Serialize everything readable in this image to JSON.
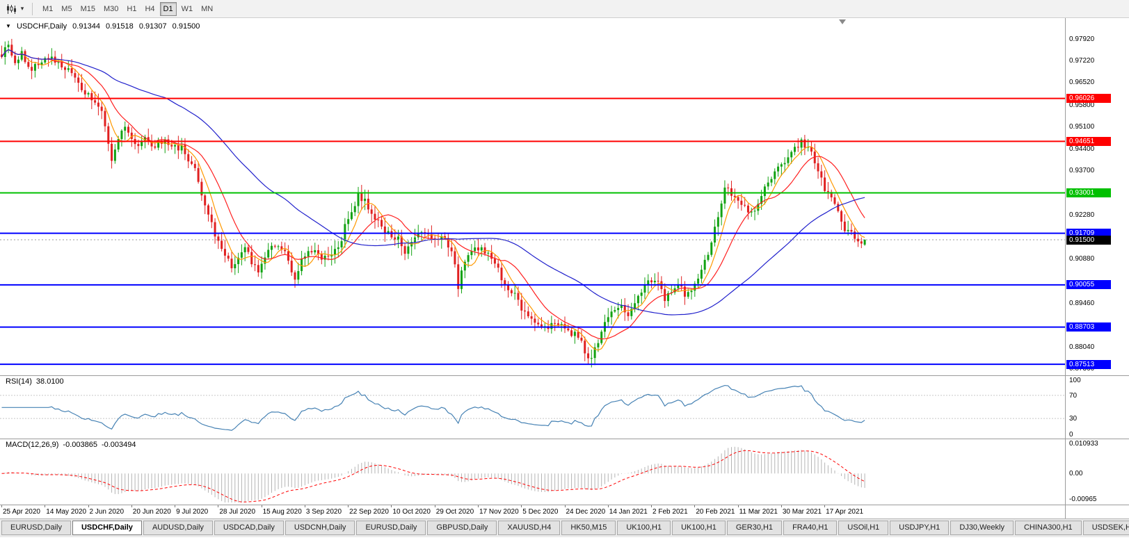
{
  "toolbar": {
    "timeframes": [
      {
        "label": "M1",
        "active": false
      },
      {
        "label": "M5",
        "active": false
      },
      {
        "label": "M15",
        "active": false
      },
      {
        "label": "M30",
        "active": false
      },
      {
        "label": "H1",
        "active": false
      },
      {
        "label": "H4",
        "active": false
      },
      {
        "label": "D1",
        "active": true
      },
      {
        "label": "W1",
        "active": false
      },
      {
        "label": "MN",
        "active": false
      }
    ]
  },
  "chart": {
    "symbol": "USDCHF,Daily",
    "ohlc": {
      "open": "0.91344",
      "high": "0.91518",
      "low": "0.91307",
      "close": "0.91500"
    }
  },
  "rsi_panel": {
    "name": "RSI(14)",
    "value": "38.0100",
    "axis_labels": [
      "100",
      "70",
      "30",
      "0"
    ]
  },
  "macd_panel": {
    "name": "MACD(12,26,9)",
    "value_main": "-0.003865",
    "value_signal": "-0.003494",
    "axis_labels": [
      "0.010933",
      "0.00",
      "-0.00965"
    ]
  },
  "tabs": [
    {
      "label": "EURUSD,Daily",
      "active": false
    },
    {
      "label": "USDCHF,Daily",
      "active": true
    },
    {
      "label": "AUDUSD,Daily",
      "active": false
    },
    {
      "label": "USDCAD,Daily",
      "active": false
    },
    {
      "label": "USDCNH,Daily",
      "active": false
    },
    {
      "label": "EURUSD,Daily",
      "active": false
    },
    {
      "label": "GBPUSD,Daily",
      "active": false
    },
    {
      "label": "XAUUSD,H4",
      "active": false
    },
    {
      "label": "HK50,M15",
      "active": false
    },
    {
      "label": "UK100,H1",
      "active": false
    },
    {
      "label": "UK100,H1",
      "active": false
    },
    {
      "label": "GER30,H1",
      "active": false
    },
    {
      "label": "FRA40,H1",
      "active": false
    },
    {
      "label": "USOil,H1",
      "active": false
    },
    {
      "label": "USDJPY,H1",
      "active": false
    },
    {
      "label": "DJ30,Weekly",
      "active": false
    },
    {
      "label": "CHINA300,H1",
      "active": false
    },
    {
      "label": "USDSEK,H1",
      "active": false
    }
  ],
  "chart_data": {
    "type": "candlestick",
    "symbol": "USDCHF",
    "timeframe": "Daily",
    "title": "USDCHF,Daily",
    "n_candles": 260,
    "last_ohlc": [
      0.91344,
      0.91518,
      0.91307,
      0.915
    ],
    "price_axis": {
      "min": 0.8716,
      "max": 0.986,
      "ticks": [
        "0.97920",
        "0.97220",
        "0.96520",
        "0.95800",
        "0.95100",
        "0.94400",
        "0.93700",
        "0.92280",
        "0.90880",
        "0.89460",
        "0.88040",
        "0.87360"
      ]
    },
    "horizontal_lines": [
      {
        "value": 0.96026,
        "label": "0.96026",
        "color": "#ff0000"
      },
      {
        "value": 0.94651,
        "label": "0.94651",
        "color": "#ff0000"
      },
      {
        "value": 0.93001,
        "label": "0.93001",
        "color": "#00c000"
      },
      {
        "value": 0.91709,
        "label": "0.91709",
        "color": "#0000ff"
      },
      {
        "value": 0.90055,
        "label": "0.90055",
        "color": "#0000ff"
      },
      {
        "value": 0.88703,
        "label": "0.88703",
        "color": "#0000ff"
      },
      {
        "value": 0.87513,
        "label": "0.87513",
        "color": "#0000ff"
      }
    ],
    "current_price": {
      "value": 0.915,
      "label": "0.91500",
      "badge_color": "#000000"
    },
    "candle_colors": {
      "up": "#12a212",
      "down": "#e02020"
    },
    "moving_averages": [
      {
        "period": 6,
        "color": "#ff9900"
      },
      {
        "period": 14,
        "color": "#ff2020"
      },
      {
        "period": 50,
        "color": "#2020cc"
      }
    ],
    "indicators": [
      {
        "name": "RSI",
        "period": 14,
        "current": 38.01,
        "color": "#4682b4",
        "range": [
          0,
          100
        ],
        "levels": [
          70,
          30
        ]
      },
      {
        "name": "MACD",
        "fast": 12,
        "slow": 26,
        "signal": 9,
        "current_main": -0.003865,
        "current_signal": -0.003494,
        "axis_max": 0.010933,
        "axis_min": -0.00965,
        "histogram_color": "#b4b4b4",
        "signal_color": "#ff0000"
      }
    ],
    "x_axis": {
      "labels": [
        {
          "label": "25 Apr 2020",
          "i": 0
        },
        {
          "label": "14 May 2020",
          "i": 13
        },
        {
          "label": "2 Jun 2020",
          "i": 26
        },
        {
          "label": "20 Jun 2020",
          "i": 39
        },
        {
          "label": "9 Jul 2020",
          "i": 52
        },
        {
          "label": "28 Jul 2020",
          "i": 65
        },
        {
          "label": "15 Aug 2020",
          "i": 78
        },
        {
          "label": "3 Sep 2020",
          "i": 91
        },
        {
          "label": "22 Sep 2020",
          "i": 104
        },
        {
          "label": "10 Oct 2020",
          "i": 117
        },
        {
          "label": "29 Oct 2020",
          "i": 130
        },
        {
          "label": "17 Nov 2020",
          "i": 143
        },
        {
          "label": "5 Dec 2020",
          "i": 156
        },
        {
          "label": "24 Dec 2020",
          "i": 169
        },
        {
          "label": "14 Jan 2021",
          "i": 182
        },
        {
          "label": "2 Feb 2021",
          "i": 195
        },
        {
          "label": "20 Feb 2021",
          "i": 208
        },
        {
          "label": "11 Mar 2021",
          "i": 221
        },
        {
          "label": "30 Mar 2021",
          "i": 234
        },
        {
          "label": "17 Apr 2021",
          "i": 247
        }
      ]
    },
    "note": "close_anchors are [candle_index, close_price] points read from the chart; candles between anchors are interpolated",
    "close_anchors": [
      [
        0,
        0.9745
      ],
      [
        2,
        0.9772
      ],
      [
        4,
        0.9712
      ],
      [
        6,
        0.9748
      ],
      [
        9,
        0.9692
      ],
      [
        12,
        0.9726
      ],
      [
        15,
        0.9731
      ],
      [
        18,
        0.9706
      ],
      [
        21,
        0.9682
      ],
      [
        24,
        0.9627
      ],
      [
        26,
        0.9615
      ],
      [
        28,
        0.9591
      ],
      [
        30,
        0.9556
      ],
      [
        32,
        0.9452
      ],
      [
        33,
        0.9402
      ],
      [
        35,
        0.9471
      ],
      [
        37,
        0.9512
      ],
      [
        39,
        0.9482
      ],
      [
        41,
        0.9446
      ],
      [
        43,
        0.9471
      ],
      [
        45,
        0.9442
      ],
      [
        47,
        0.9461
      ],
      [
        49,
        0.9466
      ],
      [
        51,
        0.9441
      ],
      [
        53,
        0.9446
      ],
      [
        54,
        0.9456
      ],
      [
        56,
        0.9401
      ],
      [
        58,
        0.9371
      ],
      [
        60,
        0.9291
      ],
      [
        62,
        0.9231
      ],
      [
        64,
        0.9161
      ],
      [
        65,
        0.9151
      ],
      [
        67,
        0.9101
      ],
      [
        69,
        0.9066
      ],
      [
        71,
        0.9091
      ],
      [
        73,
        0.9131
      ],
      [
        75,
        0.9081
      ],
      [
        77,
        0.9051
      ],
      [
        78,
        0.9071
      ],
      [
        80,
        0.9111
      ],
      [
        82,
        0.9136
      ],
      [
        84,
        0.9121
      ],
      [
        86,
        0.9091
      ],
      [
        88,
        0.9021
      ],
      [
        90,
        0.9081
      ],
      [
        92,
        0.9106
      ],
      [
        94,
        0.9116
      ],
      [
        96,
        0.9091
      ],
      [
        98,
        0.9101
      ],
      [
        100,
        0.9121
      ],
      [
        102,
        0.9146
      ],
      [
        103,
        0.9201
      ],
      [
        105,
        0.9241
      ],
      [
        107,
        0.9291
      ],
      [
        109,
        0.9271
      ],
      [
        111,
        0.9241
      ],
      [
        113,
        0.9206
      ],
      [
        115,
        0.9176
      ],
      [
        117,
        0.9161
      ],
      [
        119,
        0.9151
      ],
      [
        121,
        0.9116
      ],
      [
        123,
        0.9151
      ],
      [
        125,
        0.9171
      ],
      [
        127,
        0.9166
      ],
      [
        129,
        0.9156
      ],
      [
        131,
        0.9161
      ],
      [
        133,
        0.9146
      ],
      [
        135,
        0.9121
      ],
      [
        136,
        0.9061
      ],
      [
        137,
        0.9001
      ],
      [
        138,
        0.9061
      ],
      [
        140,
        0.9111
      ],
      [
        142,
        0.9126
      ],
      [
        144,
        0.9121
      ],
      [
        146,
        0.9101
      ],
      [
        148,
        0.9081
      ],
      [
        150,
        0.9031
      ],
      [
        152,
        0.8991
      ],
      [
        154,
        0.8971
      ],
      [
        156,
        0.8927
      ],
      [
        158,
        0.8906
      ],
      [
        160,
        0.8891
      ],
      [
        162,
        0.8881
      ],
      [
        164,
        0.8861
      ],
      [
        166,
        0.8891
      ],
      [
        168,
        0.8871
      ],
      [
        170,
        0.8856
      ],
      [
        172,
        0.8846
      ],
      [
        174,
        0.8816
      ],
      [
        175,
        0.8791
      ],
      [
        176,
        0.8761
      ],
      [
        178,
        0.8801
      ],
      [
        180,
        0.8856
      ],
      [
        182,
        0.8901
      ],
      [
        184,
        0.8926
      ],
      [
        186,
        0.8936
      ],
      [
        188,
        0.8906
      ],
      [
        190,
        0.8951
      ],
      [
        192,
        0.8986
      ],
      [
        194,
        0.9011
      ],
      [
        196,
        0.9021
      ],
      [
        198,
        0.8996
      ],
      [
        199,
        0.8961
      ],
      [
        201,
        0.8991
      ],
      [
        203,
        0.9006
      ],
      [
        205,
        0.8976
      ],
      [
        207,
        0.8996
      ],
      [
        209,
        0.9021
      ],
      [
        211,
        0.9081
      ],
      [
        213,
        0.9141
      ],
      [
        215,
        0.9221
      ],
      [
        217,
        0.9321
      ],
      [
        219,
        0.9291
      ],
      [
        221,
        0.9271
      ],
      [
        223,
        0.9251
      ],
      [
        225,
        0.9231
      ],
      [
        227,
        0.9271
      ],
      [
        229,
        0.9311
      ],
      [
        231,
        0.9351
      ],
      [
        233,
        0.9381
      ],
      [
        235,
        0.9401
      ],
      [
        237,
        0.9431
      ],
      [
        239,
        0.9456
      ],
      [
        240,
        0.9462
      ],
      [
        242,
        0.9441
      ],
      [
        244,
        0.9406
      ],
      [
        246,
        0.9351
      ],
      [
        247,
        0.9316
      ],
      [
        249,
        0.9281
      ],
      [
        251,
        0.9231
      ],
      [
        253,
        0.9186
      ],
      [
        255,
        0.9166
      ],
      [
        257,
        0.9146
      ],
      [
        259,
        0.915
      ]
    ]
  }
}
